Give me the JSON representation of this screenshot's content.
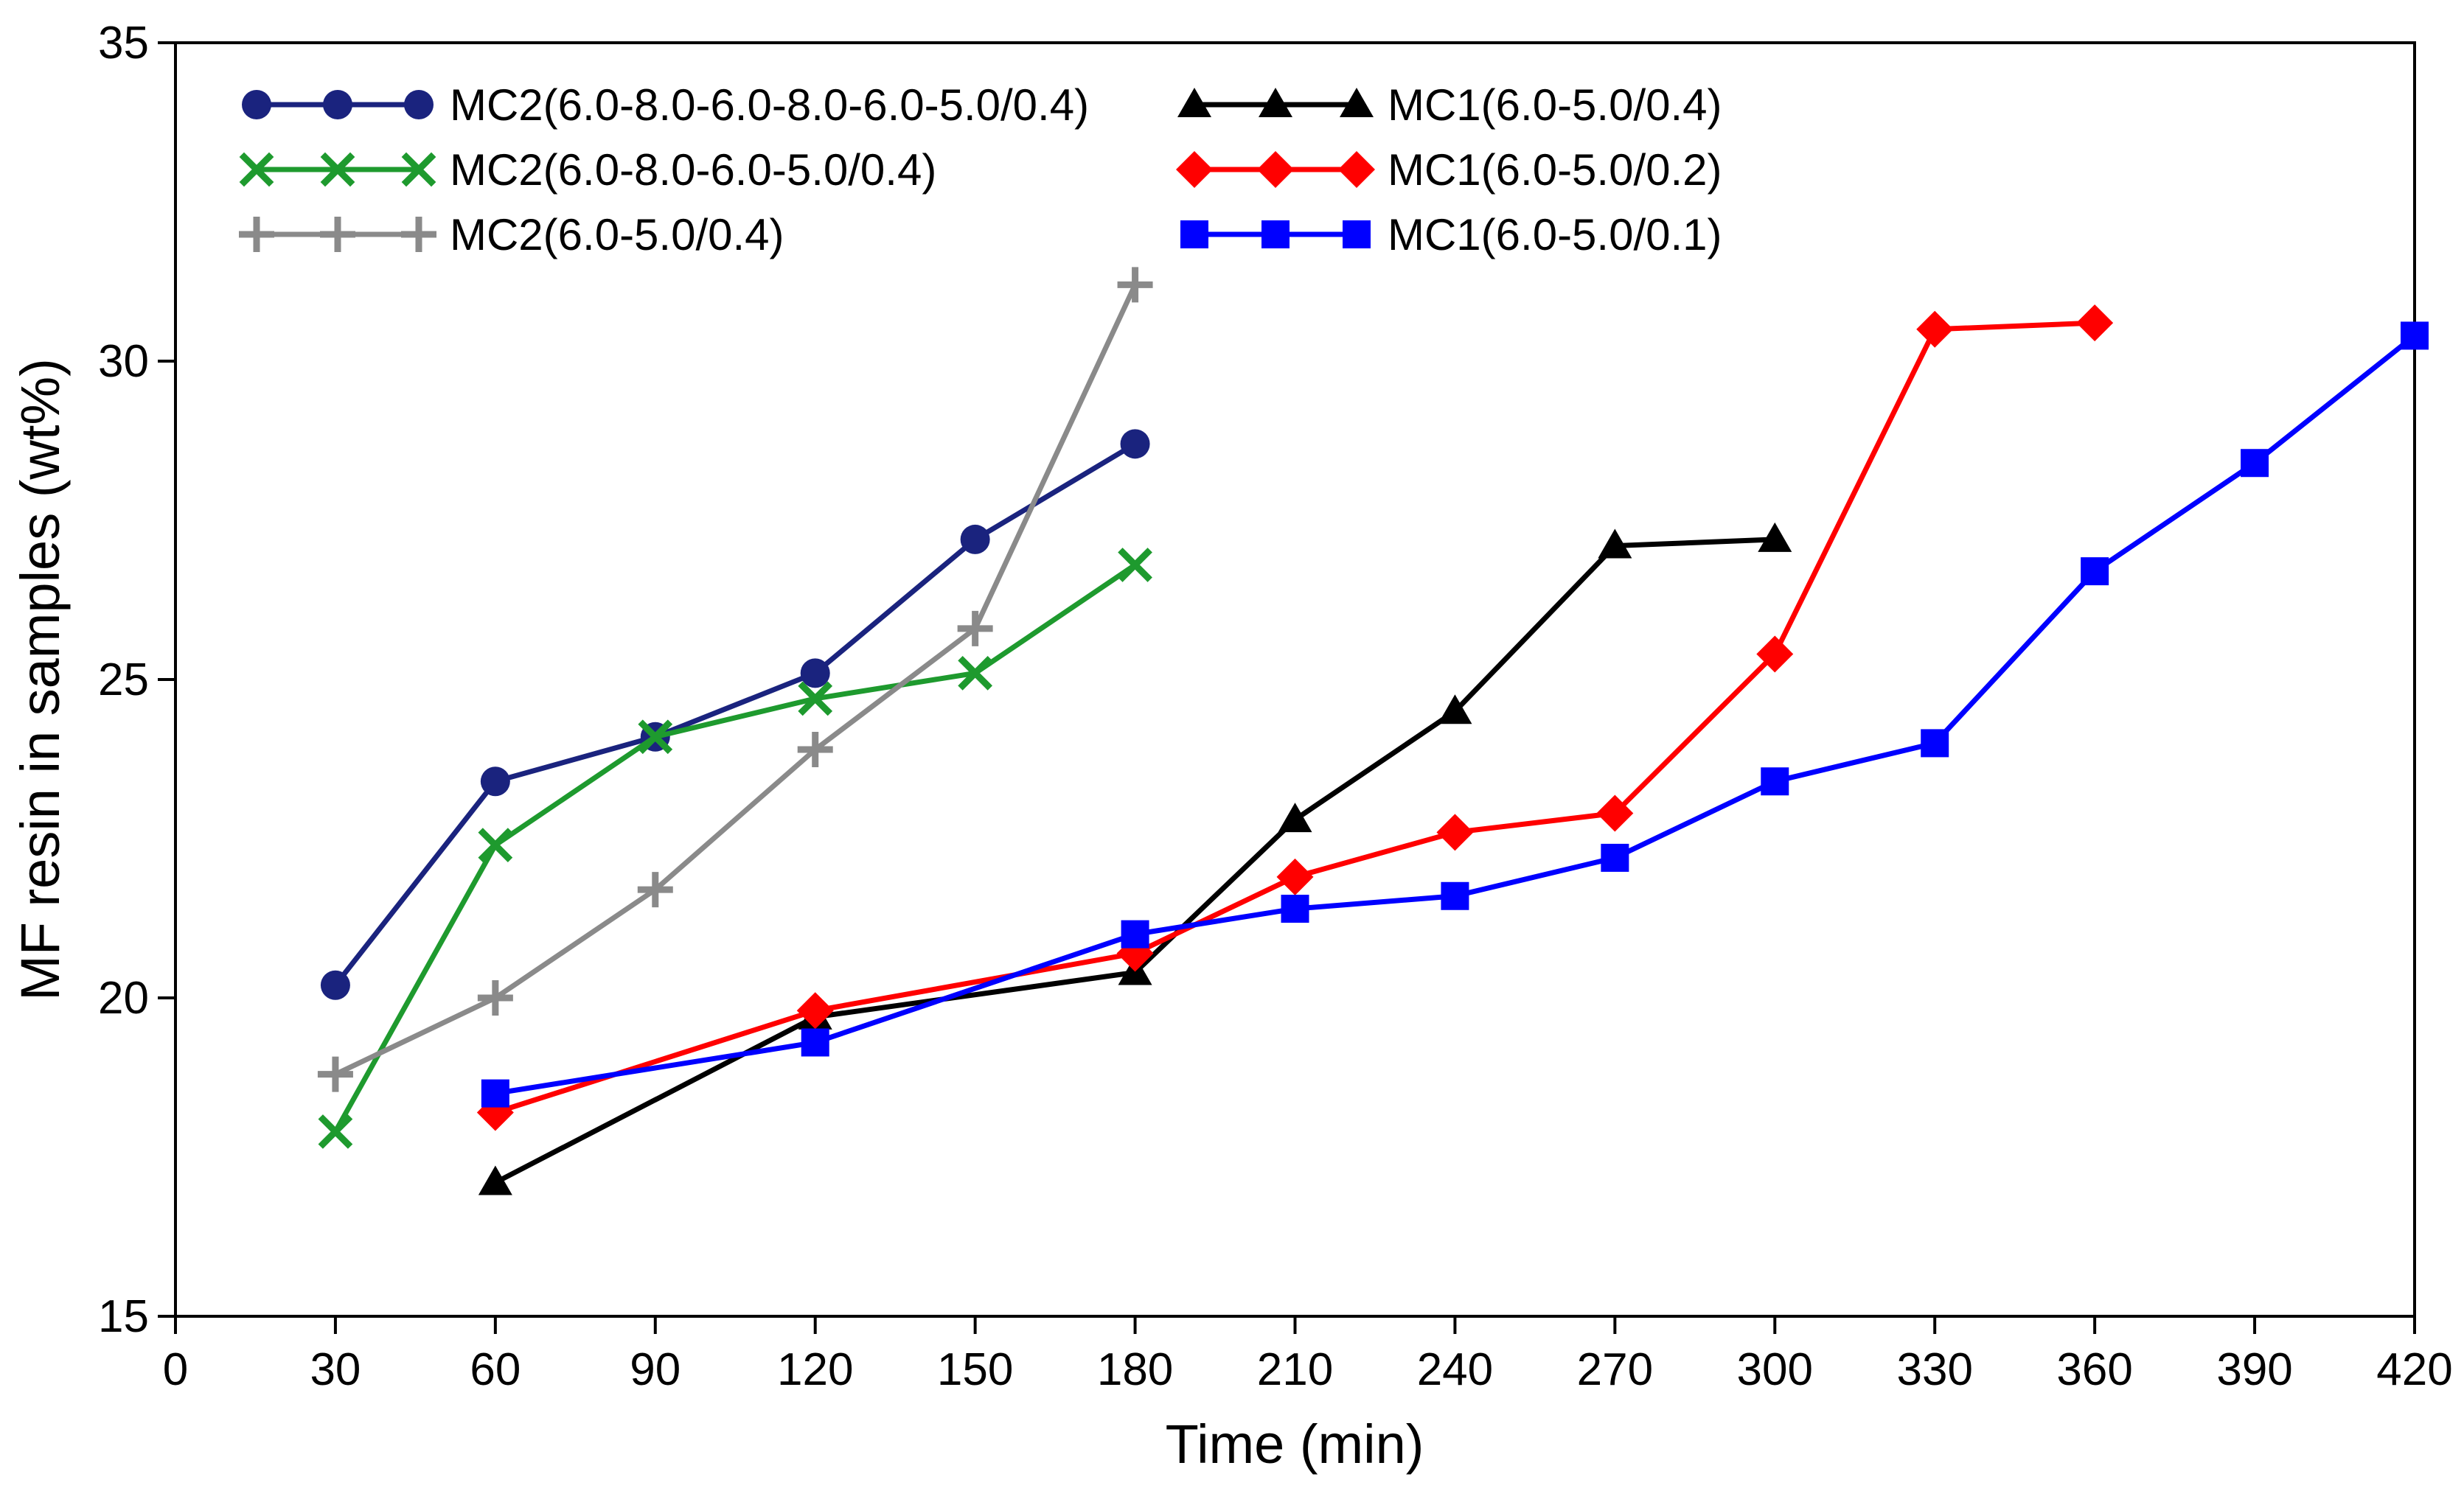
{
  "chart_data": {
    "type": "line",
    "title": "",
    "xlabel": "Time (min)",
    "ylabel": "MF resin in samples (wt%)",
    "xlim": [
      0,
      420
    ],
    "ylim": [
      15,
      35
    ],
    "xticks": [
      0,
      30,
      60,
      90,
      120,
      150,
      180,
      210,
      240,
      270,
      300,
      330,
      360,
      390,
      420
    ],
    "yticks": [
      15,
      20,
      25,
      30,
      35
    ],
    "grid": false,
    "legend_position": "top-left",
    "series": [
      {
        "name": "MC2(6.0-8.0-6.0-8.0-6.0-5.0/0.4)",
        "color": "#1a237e",
        "marker": "circle",
        "x": [
          30,
          60,
          90,
          120,
          150,
          180
        ],
        "values": [
          20.2,
          23.4,
          24.1,
          25.1,
          27.2,
          28.7
        ]
      },
      {
        "name": "MC2(6.0-8.0-6.0-5.0/0.4)",
        "color": "#1e9a2e",
        "marker": "x",
        "x": [
          30,
          60,
          90,
          120,
          150,
          180
        ],
        "values": [
          17.9,
          22.4,
          24.1,
          24.7,
          25.1,
          26.8
        ]
      },
      {
        "name": "MC2(6.0-5.0/0.4)",
        "color": "#8a8a8a",
        "marker": "plus",
        "x": [
          30,
          60,
          90,
          120,
          150,
          180
        ],
        "values": [
          18.8,
          20.0,
          21.7,
          23.9,
          25.8,
          31.2
        ]
      },
      {
        "name": "MC1(6.0-5.0/0.4)",
        "color": "#000000",
        "marker": "triangle",
        "x": [
          60,
          120,
          180,
          210,
          240,
          270,
          300
        ],
        "values": [
          17.1,
          19.7,
          20.4,
          22.8,
          24.5,
          27.1,
          27.2
        ]
      },
      {
        "name": "MC1(6.0-5.0/0.2)",
        "color": "#ff0000",
        "marker": "diamond",
        "x": [
          60,
          120,
          180,
          210,
          240,
          270,
          300,
          330,
          360
        ],
        "values": [
          18.2,
          19.8,
          20.7,
          21.9,
          22.6,
          22.9,
          25.4,
          30.5,
          30.6
        ]
      },
      {
        "name": "MC1(6.0-5.0/0.1)",
        "color": "#0000ff",
        "marker": "square",
        "x": [
          60,
          120,
          180,
          210,
          240,
          270,
          300,
          330,
          360,
          390,
          420
        ],
        "values": [
          18.5,
          19.3,
          21.0,
          21.4,
          21.6,
          22.2,
          23.4,
          24.0,
          26.7,
          28.4,
          30.4
        ]
      }
    ]
  }
}
